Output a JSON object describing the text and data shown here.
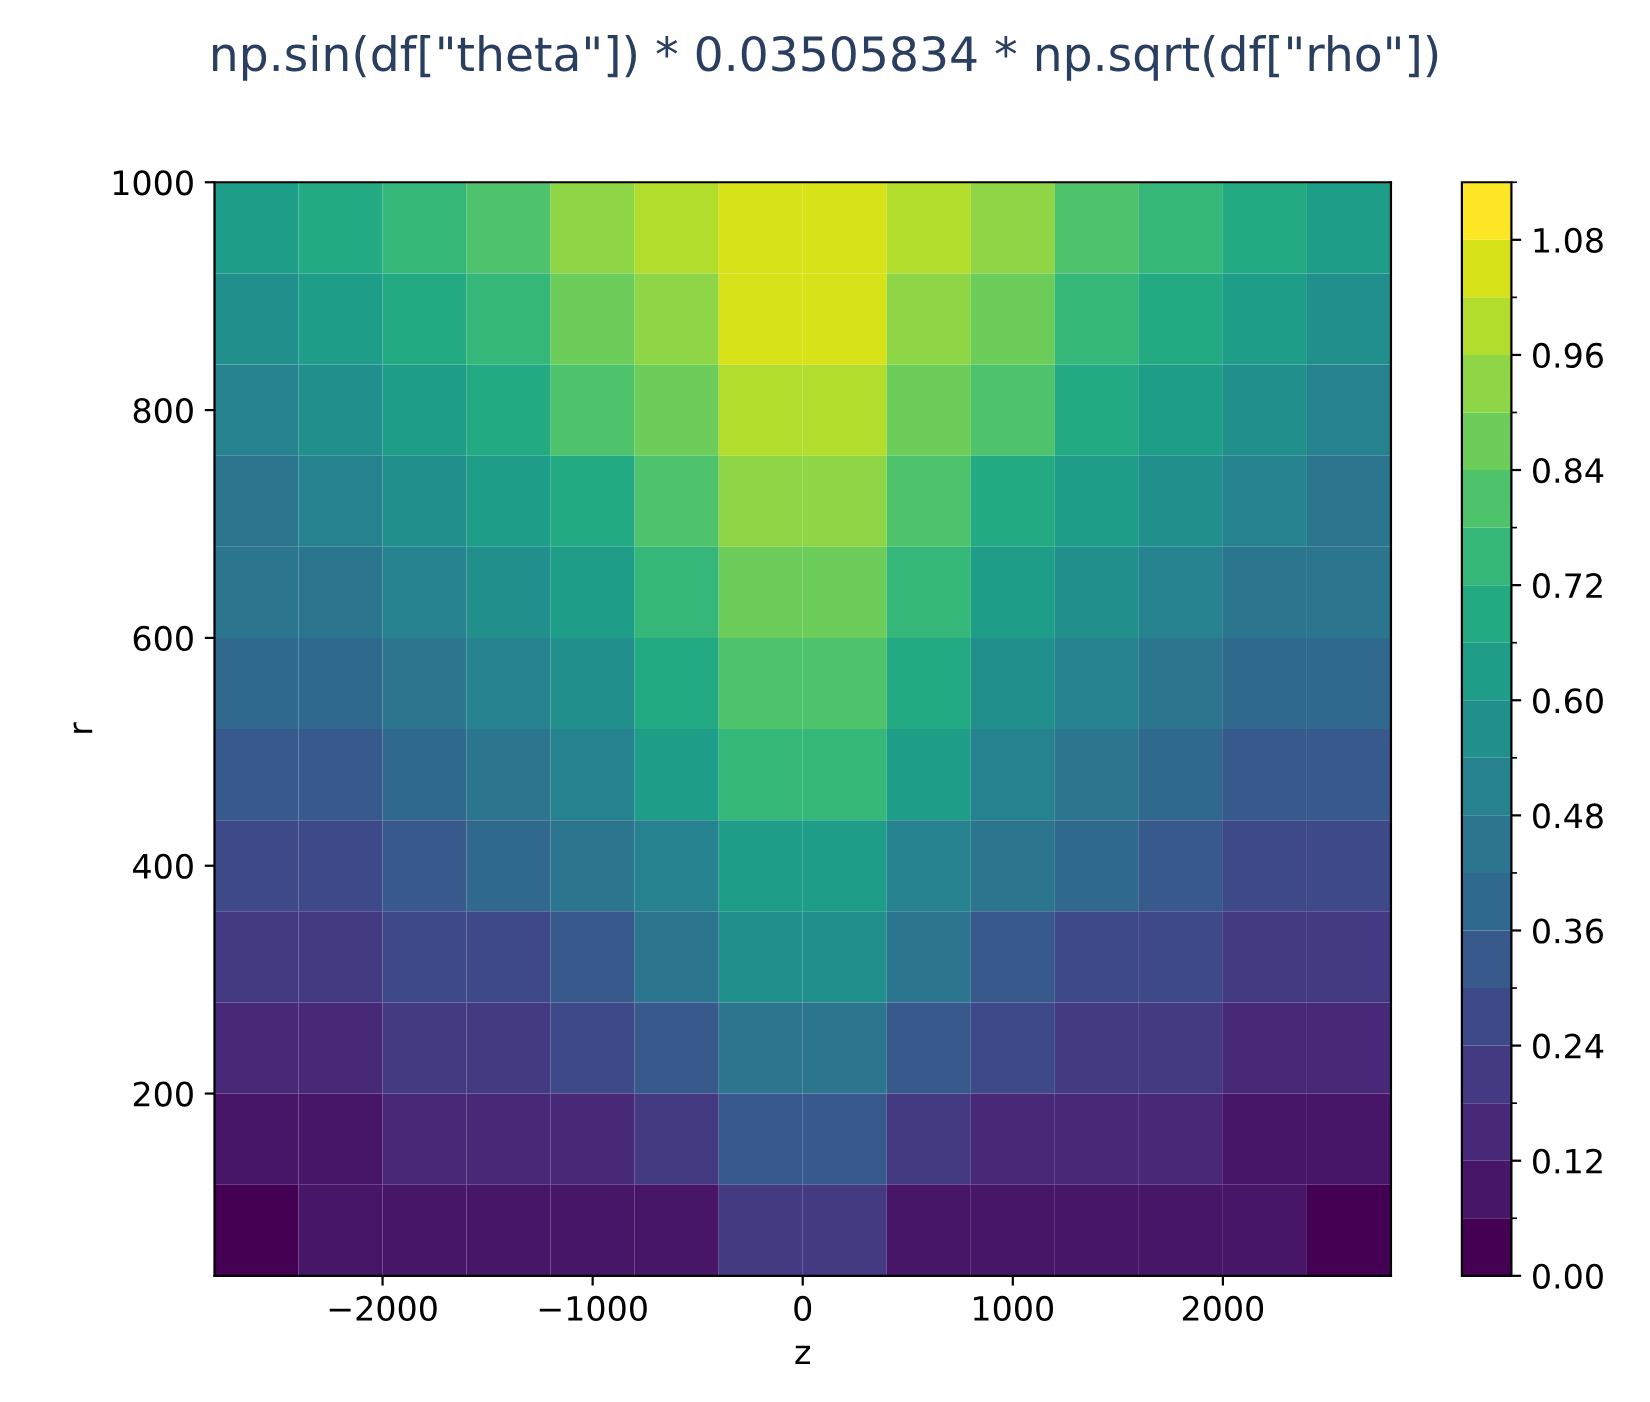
{
  "chart_data": {
    "type": "heatmap",
    "title": "np.sin(df[\"theta\"]) * 0.03505834 * np.sqrt(df[\"rho\"])",
    "xlabel": "z",
    "ylabel": "r",
    "x": [
      -2600,
      -2200,
      -1800,
      -1400,
      -1000,
      -600,
      -200,
      200,
      600,
      1000,
      1400,
      1800,
      2200,
      2600
    ],
    "y": [
      960,
      880,
      800,
      720,
      640,
      560,
      480,
      400,
      320,
      240,
      160,
      80
    ],
    "cells": [
      [
        0.63,
        0.69,
        0.75,
        0.81,
        0.93,
        0.99,
        1.05,
        1.05,
        0.99,
        0.93,
        0.81,
        0.75,
        0.69,
        0.63
      ],
      [
        0.57,
        0.63,
        0.69,
        0.75,
        0.87,
        0.93,
        1.05,
        1.05,
        0.93,
        0.87,
        0.75,
        0.69,
        0.63,
        0.57
      ],
      [
        0.51,
        0.57,
        0.63,
        0.69,
        0.81,
        0.87,
        0.99,
        0.99,
        0.87,
        0.81,
        0.69,
        0.63,
        0.57,
        0.51
      ],
      [
        0.45,
        0.51,
        0.57,
        0.63,
        0.69,
        0.81,
        0.93,
        0.93,
        0.81,
        0.69,
        0.63,
        0.57,
        0.51,
        0.45
      ],
      [
        0.45,
        0.45,
        0.51,
        0.57,
        0.63,
        0.75,
        0.87,
        0.87,
        0.75,
        0.63,
        0.57,
        0.51,
        0.45,
        0.45
      ],
      [
        0.39,
        0.39,
        0.45,
        0.51,
        0.57,
        0.69,
        0.81,
        0.81,
        0.69,
        0.57,
        0.51,
        0.45,
        0.39,
        0.39
      ],
      [
        0.33,
        0.33,
        0.39,
        0.45,
        0.51,
        0.63,
        0.75,
        0.75,
        0.63,
        0.51,
        0.45,
        0.39,
        0.33,
        0.33
      ],
      [
        0.27,
        0.27,
        0.33,
        0.39,
        0.45,
        0.51,
        0.63,
        0.63,
        0.51,
        0.45,
        0.39,
        0.33,
        0.27,
        0.27
      ],
      [
        0.21,
        0.21,
        0.27,
        0.27,
        0.33,
        0.45,
        0.57,
        0.57,
        0.45,
        0.33,
        0.27,
        0.27,
        0.21,
        0.21
      ],
      [
        0.15,
        0.15,
        0.21,
        0.21,
        0.27,
        0.33,
        0.45,
        0.45,
        0.33,
        0.27,
        0.21,
        0.21,
        0.15,
        0.15
      ],
      [
        0.09,
        0.09,
        0.15,
        0.15,
        0.15,
        0.21,
        0.33,
        0.33,
        0.21,
        0.15,
        0.15,
        0.15,
        0.09,
        0.09
      ],
      [
        0.03,
        0.09,
        0.09,
        0.09,
        0.09,
        0.09,
        0.21,
        0.21,
        0.09,
        0.09,
        0.09,
        0.09,
        0.09,
        0.03
      ]
    ],
    "xlim": [
      -2800,
      2800
    ],
    "ylim": [
      40,
      1000
    ],
    "xticks": [
      {
        "value": -2000,
        "label": "−2000"
      },
      {
        "value": -1000,
        "label": "−1000"
      },
      0,
      1000,
      2000
    ],
    "yticks": [
      200,
      400,
      600,
      800,
      1000
    ],
    "clim": [
      0,
      1.14
    ],
    "cticks": [
      {
        "value": 0,
        "label": "0.00"
      },
      0.12,
      0.24,
      0.36,
      0.48,
      {
        "value": 0.6,
        "label": "0.60"
      },
      0.72,
      0.84,
      0.96,
      1.08
    ]
  }
}
